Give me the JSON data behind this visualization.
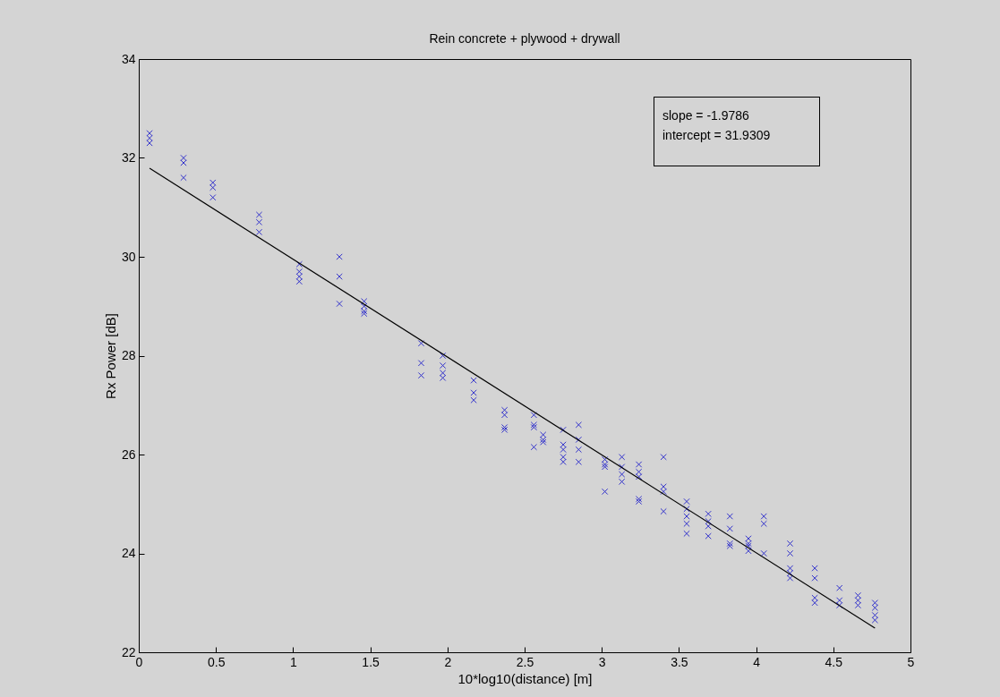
{
  "chart_data": {
    "type": "scatter",
    "title": "Rein concrete + plywood + drywall",
    "xlabel": "10*log10(distance) [m]",
    "ylabel": "Rx Power [dB]",
    "xlim": [
      0,
      5
    ],
    "xticks": [
      0,
      0.5,
      1,
      1.5,
      2,
      2.5,
      3,
      3.5,
      4,
      4.5,
      5
    ],
    "ylim": [
      22,
      34
    ],
    "yticks": [
      22,
      24,
      26,
      28,
      30,
      32,
      34
    ],
    "grid": false,
    "annotations": [
      "slope = -1.9786",
      "intercept = 31.9309"
    ],
    "series": [
      {
        "type": "scatter",
        "color": "#3333cc",
        "marker": "cross",
        "x": [
          0.07,
          0.07,
          0.07,
          0.29,
          0.29,
          0.29,
          0.48,
          0.48,
          0.48,
          0.78,
          0.78,
          0.78,
          1.04,
          1.04,
          1.04,
          1.04,
          1.3,
          1.3,
          1.3,
          1.46,
          1.46,
          1.46,
          1.46,
          1.83,
          1.83,
          1.83,
          1.97,
          1.97,
          1.97,
          1.97,
          2.17,
          2.17,
          2.17,
          2.37,
          2.37,
          2.37,
          2.37,
          2.56,
          2.56,
          2.56,
          2.56,
          2.62,
          2.62,
          2.62,
          2.75,
          2.75,
          2.75,
          2.75,
          2.75,
          2.85,
          2.85,
          2.85,
          2.85,
          3.02,
          3.02,
          3.02,
          3.02,
          3.13,
          3.13,
          3.13,
          3.13,
          3.24,
          3.24,
          3.24,
          3.24,
          3.24,
          3.4,
          3.4,
          3.4,
          3.4,
          3.55,
          3.55,
          3.55,
          3.55,
          3.55,
          3.69,
          3.69,
          3.69,
          3.69,
          3.83,
          3.83,
          3.83,
          3.83,
          3.95,
          3.95,
          3.95,
          3.95,
          4.05,
          4.05,
          4.05,
          4.22,
          4.22,
          4.22,
          4.22,
          4.22,
          4.38,
          4.38,
          4.38,
          4.38,
          4.54,
          4.54,
          4.54,
          4.66,
          4.66,
          4.66,
          4.77,
          4.77,
          4.77,
          4.77
        ],
        "values": [
          32.5,
          32.4,
          32.3,
          32.0,
          31.9,
          31.6,
          31.5,
          31.4,
          31.2,
          30.85,
          30.7,
          30.5,
          29.85,
          29.7,
          29.6,
          29.5,
          30.0,
          29.6,
          29.05,
          29.1,
          29.0,
          28.9,
          28.85,
          28.25,
          27.85,
          27.6,
          28.0,
          27.8,
          27.65,
          27.55,
          27.5,
          27.25,
          27.1,
          26.9,
          26.8,
          26.55,
          26.5,
          26.8,
          26.6,
          26.55,
          26.15,
          26.4,
          26.3,
          26.25,
          26.5,
          26.2,
          26.1,
          25.95,
          25.85,
          26.6,
          26.3,
          26.1,
          25.85,
          25.9,
          25.8,
          25.75,
          25.25,
          25.95,
          25.75,
          25.6,
          25.45,
          25.8,
          25.65,
          25.55,
          25.1,
          25.05,
          25.95,
          25.35,
          25.25,
          24.85,
          25.05,
          24.9,
          24.75,
          24.6,
          24.4,
          24.8,
          24.65,
          24.55,
          24.35,
          24.75,
          24.5,
          24.2,
          24.15,
          24.3,
          24.2,
          24.15,
          24.05,
          24.75,
          24.6,
          24.0,
          24.2,
          24.0,
          23.7,
          23.6,
          23.5,
          23.7,
          23.5,
          23.1,
          23.0,
          23.3,
          23.05,
          22.95,
          23.15,
          23.05,
          22.95,
          23.0,
          22.9,
          22.75,
          22.65
        ]
      },
      {
        "type": "line",
        "color": "#000000",
        "x": [
          0.07,
          4.77
        ],
        "values": [
          31.79,
          22.49
        ]
      }
    ]
  }
}
